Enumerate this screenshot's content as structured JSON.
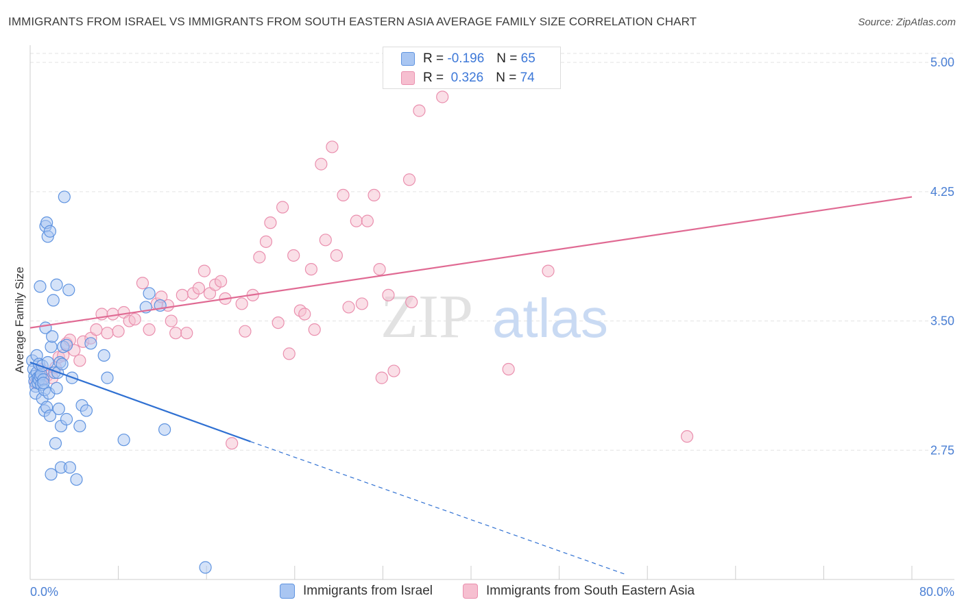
{
  "title": "IMMIGRANTS FROM ISRAEL VS IMMIGRANTS FROM SOUTH EASTERN ASIA AVERAGE FAMILY SIZE CORRELATION CHART",
  "source": "Source: ZipAtlas.com",
  "watermark": {
    "part1": "ZIP",
    "part2": "atlas"
  },
  "colors": {
    "blue_fill": "#a9c6f2",
    "blue_stroke": "#5e93e0",
    "blue_line": "#2f70d2",
    "pink_fill": "#f6bfd0",
    "pink_stroke": "#ea8fae",
    "pink_line": "#e06a93",
    "tick_blue": "#4a7fd4",
    "grid": "#e3e3e3"
  },
  "stats_legend": [
    {
      "r_label": "R =",
      "r_value": "-0.196",
      "n_label": "N =",
      "n_value": "65"
    },
    {
      "r_label": "R =",
      "r_value": "0.326",
      "n_label": "N =",
      "n_value": "74"
    }
  ],
  "chart_data": {
    "type": "scatter",
    "title": "IMMIGRANTS FROM ISRAEL VS IMMIGRANTS FROM SOUTH EASTERN ASIA AVERAGE FAMILY SIZE CORRELATION CHART",
    "xlabel": "",
    "ylabel": "Average Family Size",
    "xlim": [
      0,
      80
    ],
    "ylim": [
      2.0,
      5.1
    ],
    "x_tick_labels": [
      "0.0%",
      "80.0%"
    ],
    "y_ticks": [
      2.75,
      3.5,
      4.25,
      5.0
    ],
    "y_tick_labels": [
      "2.75",
      "3.50",
      "4.25",
      "5.00"
    ],
    "grid": "horizontal dashed",
    "legend_position": "bottom",
    "series": [
      {
        "name": "Immigrants from Israel",
        "trend": {
          "x0": 0,
          "y0": 3.26,
          "x1": 20,
          "y1": 2.8,
          "dashed_to_x": 54,
          "dashed_to_y": 2.03
        },
        "points": [
          [
            0.2,
            3.27
          ],
          [
            0.3,
            3.22
          ],
          [
            0.4,
            3.18
          ],
          [
            0.4,
            3.15
          ],
          [
            0.5,
            3.12
          ],
          [
            0.5,
            3.08
          ],
          [
            0.6,
            3.3
          ],
          [
            0.6,
            3.2
          ],
          [
            0.7,
            3.17
          ],
          [
            0.7,
            3.14
          ],
          [
            0.8,
            3.25
          ],
          [
            0.8,
            3.16
          ],
          [
            0.9,
            3.7
          ],
          [
            0.9,
            3.18
          ],
          [
            1.0,
            3.13
          ],
          [
            1.0,
            3.19
          ],
          [
            1.1,
            3.05
          ],
          [
            1.1,
            3.24
          ],
          [
            1.2,
            3.16
          ],
          [
            1.3,
            2.98
          ],
          [
            1.3,
            3.1
          ],
          [
            1.4,
            4.05
          ],
          [
            1.4,
            3.46
          ],
          [
            1.5,
            4.07
          ],
          [
            1.5,
            3.0
          ],
          [
            1.6,
            3.99
          ],
          [
            1.6,
            3.26
          ],
          [
            1.7,
            3.08
          ],
          [
            1.8,
            4.02
          ],
          [
            1.8,
            2.95
          ],
          [
            1.9,
            3.35
          ],
          [
            1.9,
            2.61
          ],
          [
            2.0,
            3.41
          ],
          [
            2.1,
            3.62
          ],
          [
            2.2,
            3.2
          ],
          [
            2.3,
            2.79
          ],
          [
            2.4,
            3.71
          ],
          [
            2.4,
            3.11
          ],
          [
            2.5,
            3.2
          ],
          [
            2.6,
            2.99
          ],
          [
            2.7,
            3.26
          ],
          [
            2.8,
            2.65
          ],
          [
            2.8,
            2.89
          ],
          [
            2.9,
            3.25
          ],
          [
            3.0,
            3.35
          ],
          [
            3.1,
            4.22
          ],
          [
            3.3,
            3.36
          ],
          [
            3.3,
            2.93
          ],
          [
            3.5,
            3.68
          ],
          [
            3.6,
            2.65
          ],
          [
            3.8,
            3.17
          ],
          [
            4.2,
            2.58
          ],
          [
            4.5,
            2.89
          ],
          [
            4.7,
            3.01
          ],
          [
            5.1,
            2.98
          ],
          [
            5.5,
            3.37
          ],
          [
            6.7,
            3.3
          ],
          [
            7.0,
            3.17
          ],
          [
            8.5,
            2.81
          ],
          [
            10.5,
            3.58
          ],
          [
            10.8,
            3.66
          ],
          [
            11.8,
            3.59
          ],
          [
            12.2,
            2.87
          ],
          [
            15.9,
            2.07
          ],
          [
            1.2,
            3.14
          ]
        ]
      },
      {
        "name": "Immigrants from South Eastern Asia",
        "trend": {
          "x0": 0,
          "y0": 3.46,
          "x1": 80,
          "y1": 4.22
        },
        "points": [
          [
            0.5,
            3.14
          ],
          [
            1.0,
            3.22
          ],
          [
            1.2,
            3.17
          ],
          [
            1.5,
            3.18
          ],
          [
            2.0,
            3.17
          ],
          [
            2.3,
            3.23
          ],
          [
            2.6,
            3.29
          ],
          [
            3.0,
            3.3
          ],
          [
            3.3,
            3.37
          ],
          [
            3.6,
            3.39
          ],
          [
            4.0,
            3.33
          ],
          [
            4.5,
            3.27
          ],
          [
            4.8,
            3.38
          ],
          [
            5.5,
            3.4
          ],
          [
            6.0,
            3.45
          ],
          [
            6.5,
            3.54
          ],
          [
            7.0,
            3.43
          ],
          [
            7.5,
            3.54
          ],
          [
            8.0,
            3.44
          ],
          [
            8.5,
            3.55
          ],
          [
            9.0,
            3.5
          ],
          [
            9.5,
            3.51
          ],
          [
            10.2,
            3.72
          ],
          [
            10.8,
            3.45
          ],
          [
            11.5,
            3.6
          ],
          [
            11.9,
            3.64
          ],
          [
            12.5,
            3.59
          ],
          [
            12.8,
            3.5
          ],
          [
            13.2,
            3.43
          ],
          [
            13.8,
            3.65
          ],
          [
            14.2,
            3.43
          ],
          [
            14.8,
            3.66
          ],
          [
            15.3,
            3.69
          ],
          [
            15.8,
            3.79
          ],
          [
            16.3,
            3.66
          ],
          [
            16.8,
            3.71
          ],
          [
            17.3,
            3.73
          ],
          [
            17.7,
            3.63
          ],
          [
            18.3,
            2.79
          ],
          [
            19.2,
            3.6
          ],
          [
            19.5,
            3.44
          ],
          [
            20.2,
            3.65
          ],
          [
            20.8,
            3.87
          ],
          [
            21.4,
            3.96
          ],
          [
            21.8,
            4.07
          ],
          [
            22.5,
            3.49
          ],
          [
            22.9,
            4.16
          ],
          [
            23.5,
            3.31
          ],
          [
            23.9,
            3.88
          ],
          [
            24.5,
            3.56
          ],
          [
            24.9,
            3.54
          ],
          [
            25.5,
            3.8
          ],
          [
            25.8,
            3.45
          ],
          [
            26.4,
            4.41
          ],
          [
            26.8,
            3.97
          ],
          [
            27.4,
            4.51
          ],
          [
            27.8,
            3.88
          ],
          [
            28.4,
            4.23
          ],
          [
            28.9,
            3.58
          ],
          [
            29.6,
            4.08
          ],
          [
            30.1,
            3.6
          ],
          [
            30.6,
            4.08
          ],
          [
            31.2,
            4.23
          ],
          [
            31.7,
            3.8
          ],
          [
            31.9,
            3.17
          ],
          [
            32.5,
            3.65
          ],
          [
            33.0,
            3.21
          ],
          [
            34.4,
            4.32
          ],
          [
            34.6,
            3.61
          ],
          [
            35.3,
            4.72
          ],
          [
            37.4,
            4.8
          ],
          [
            43.4,
            3.22
          ],
          [
            47.0,
            3.79
          ],
          [
            59.6,
            2.83
          ]
        ]
      }
    ]
  },
  "bottom_legend": [
    {
      "label": "Immigrants from Israel"
    },
    {
      "label": "Immigrants from South Eastern Asia"
    }
  ]
}
